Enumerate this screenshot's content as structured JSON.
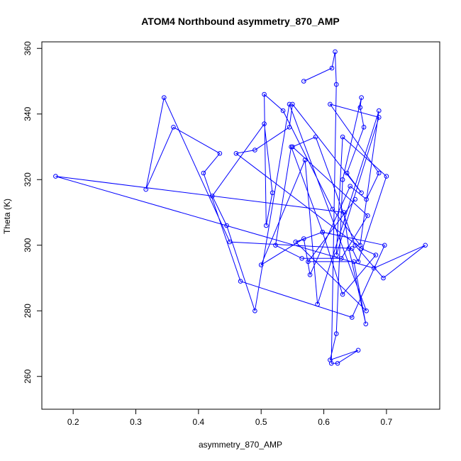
{
  "chart_data": {
    "type": "line",
    "title": "ATOM4 Northbound asymmetry_870_AMP",
    "xlabel": "asymmetry_870_AMP",
    "ylabel": "Theta (K)",
    "xlim": [
      0.15,
      0.785
    ],
    "ylim": [
      250,
      362
    ],
    "x_ticks": [
      0.2,
      0.3,
      0.4,
      0.5,
      0.6,
      0.7
    ],
    "y_ticks": [
      260,
      280,
      300,
      320,
      340,
      360
    ],
    "grid": false,
    "color": "#0000ff",
    "markers": "open-circle",
    "series": [
      {
        "x": [
          0.568,
          0.613,
          0.618,
          0.62,
          0.612,
          0.622,
          0.655,
          0.61,
          0.62,
          0.63,
          0.66,
          0.658,
          0.664,
          0.637,
          0.66,
          0.55,
          0.545,
          0.49,
          0.46,
          0.66,
          0.683,
          0.63,
          0.598,
          0.555,
          0.668,
          0.545,
          0.49,
          0.445,
          0.422,
          0.505,
          0.518,
          0.508,
          0.505,
          0.535,
          0.614,
          0.658,
          0.688,
          0.59,
          0.57,
          0.5,
          0.568,
          0.578,
          0.642,
          0.668,
          0.688,
          0.61,
          0.688,
          0.62,
          0.63,
          0.7,
          0.655,
          0.645,
          0.45,
          0.345,
          0.316,
          0.36,
          0.434,
          0.408,
          0.467,
          0.645,
          0.697,
          0.598,
          0.548,
          0.523,
          0.565,
          0.628,
          0.67,
          0.55,
          0.587,
          0.65,
          0.695,
          0.762,
          0.68,
          0.172,
          0.632,
          0.64,
          0.667,
          0.648,
          0.575,
          0.65
        ],
        "y": [
          350,
          354,
          359,
          349,
          264,
          264,
          268,
          265,
          273,
          320,
          345,
          342,
          336,
          322,
          316,
          343,
          336,
          329,
          328,
          299,
          297,
          285,
          304,
          301,
          280,
          343,
          280,
          306,
          315,
          337,
          316,
          306,
          346,
          341,
          311,
          300,
          341,
          282,
          326,
          294,
          302,
          291,
          318,
          314,
          322,
          343,
          339,
          297,
          333,
          321,
          295,
          299,
          301,
          345,
          317,
          336,
          328,
          322,
          289,
          278,
          300,
          304,
          330,
          300,
          296,
          296,
          309,
          330,
          333,
          300,
          290,
          300,
          293,
          321,
          310,
          299,
          276,
          295,
          295,
          314
        ]
      }
    ]
  }
}
